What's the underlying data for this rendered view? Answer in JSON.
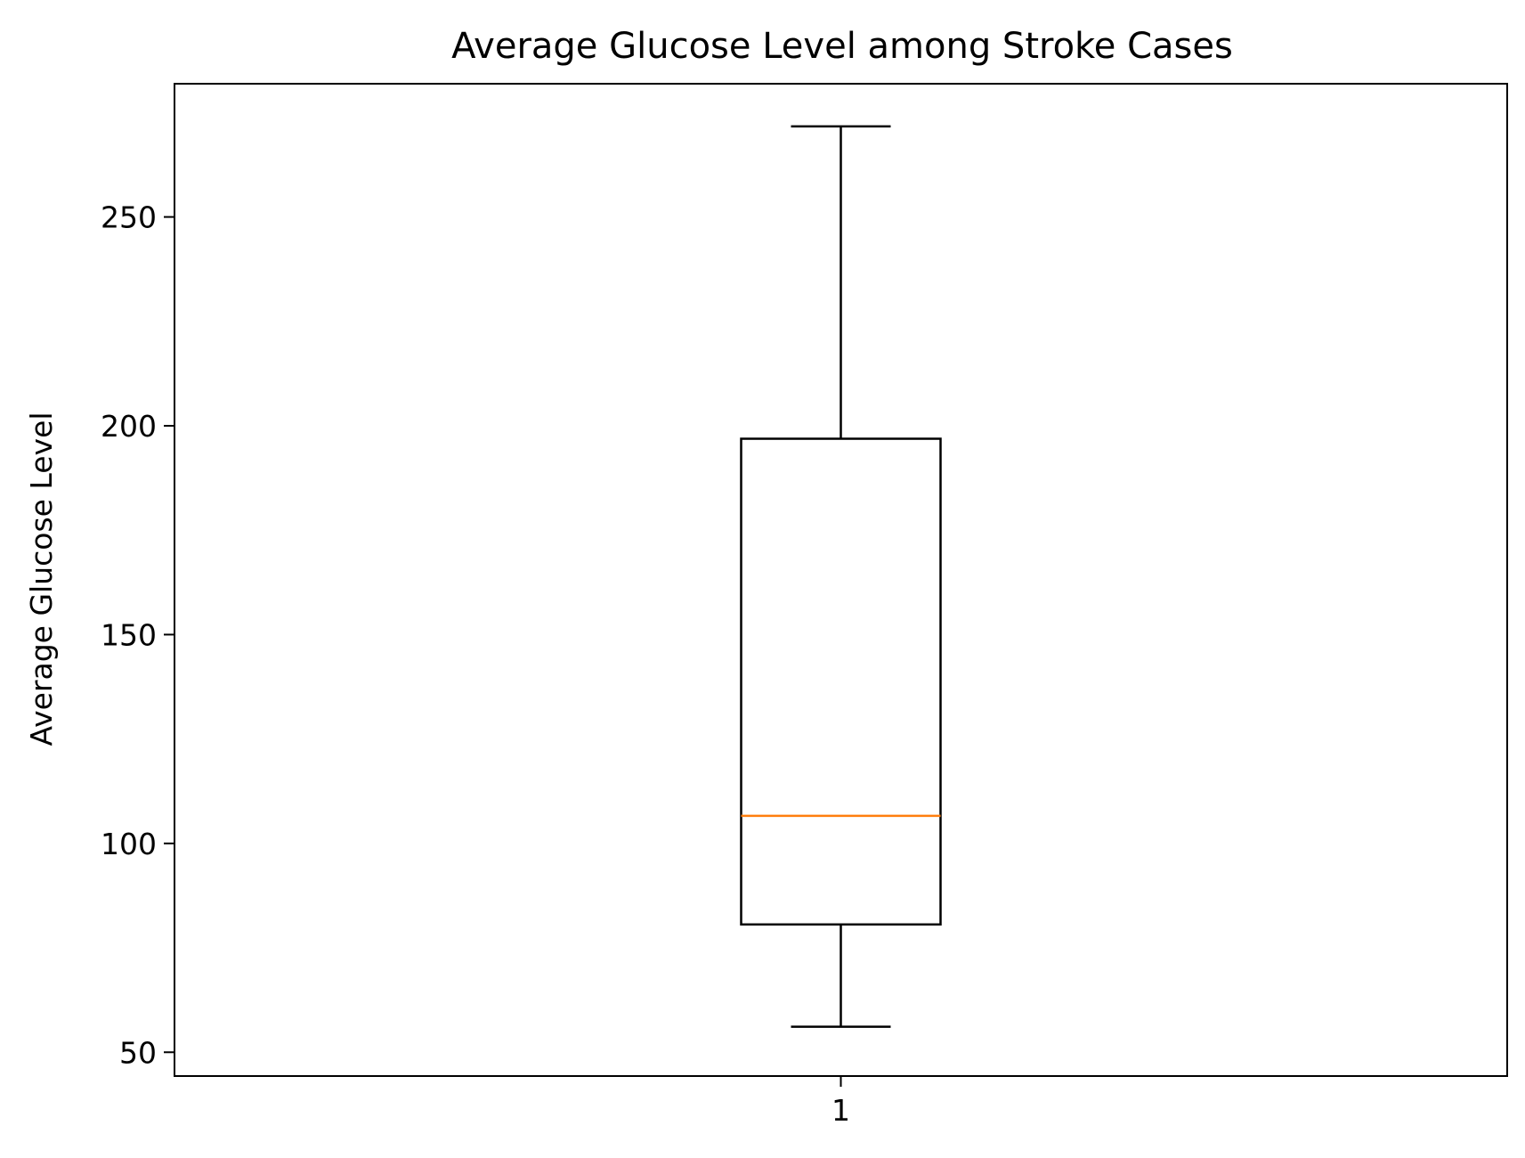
{
  "chart_data": {
    "type": "box",
    "title": "Average Glucose Level among Stroke Cases",
    "xlabel": "",
    "ylabel": "Average Glucose Level",
    "categories": [
      "1"
    ],
    "boxes": [
      {
        "category": "1",
        "whisker_low": 56.1,
        "q1": 80.6,
        "median": 106.6,
        "q3": 196.9,
        "whisker_high": 271.7
      }
    ],
    "y_ticks": [
      50,
      100,
      150,
      200,
      250
    ],
    "ylim": [
      44.3,
      281.9
    ],
    "grid": false,
    "colors": {
      "box": "#000000",
      "median": "#ff7f0e",
      "axes": "#000000"
    }
  }
}
